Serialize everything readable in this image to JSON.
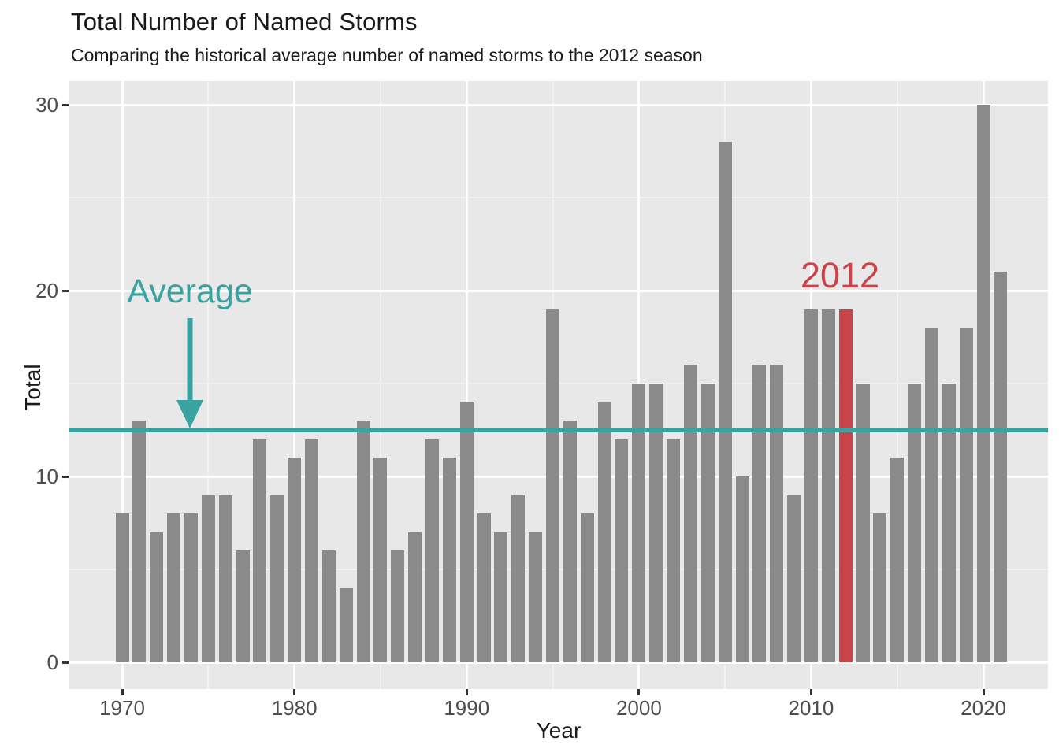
{
  "chart_data": {
    "type": "bar",
    "title": "Total Number of Named Storms",
    "subtitle": "Comparing the historical average number of named storms to the 2012 season",
    "xlabel": "Year",
    "ylabel": "Total",
    "x": [
      1970,
      1971,
      1972,
      1973,
      1974,
      1975,
      1976,
      1977,
      1978,
      1979,
      1980,
      1981,
      1982,
      1983,
      1984,
      1985,
      1986,
      1987,
      1988,
      1989,
      1990,
      1991,
      1992,
      1993,
      1994,
      1995,
      1996,
      1997,
      1998,
      1999,
      2000,
      2001,
      2002,
      2003,
      2004,
      2005,
      2006,
      2007,
      2008,
      2009,
      2010,
      2011,
      2012,
      2013,
      2014,
      2015,
      2016,
      2017,
      2018,
      2019,
      2020,
      2021
    ],
    "values": [
      8,
      13,
      7,
      8,
      8,
      9,
      9,
      6,
      12,
      9,
      11,
      12,
      6,
      4,
      13,
      11,
      6,
      7,
      12,
      11,
      14,
      8,
      7,
      9,
      7,
      19,
      13,
      8,
      14,
      12,
      15,
      15,
      12,
      16,
      15,
      28,
      10,
      16,
      16,
      9,
      19,
      19,
      19,
      15,
      8,
      11,
      15,
      18,
      15,
      18,
      30,
      21
    ],
    "highlight": {
      "year": 2012,
      "value": 19,
      "label": "2012"
    },
    "average_line": {
      "value": 12.5,
      "label": "Average"
    },
    "x_ticks": [
      1970,
      1980,
      1990,
      2000,
      2010,
      2020
    ],
    "x_minor": [
      1975,
      1985,
      1995,
      2005,
      2015
    ],
    "y_ticks": [
      0,
      10,
      20,
      30
    ],
    "y_minor": [
      5,
      15,
      25
    ],
    "ylim": [
      0,
      30
    ],
    "grid": true,
    "legend": false,
    "colors": {
      "bar": "#8A8A8A",
      "highlight": "#C9444A",
      "average": "#38A3A0",
      "panel": "#E8E8E8",
      "grid_major": "#FFFFFF",
      "grid_minor": "#F2F2F2",
      "tick_text": "#4D4D4D",
      "tick_mark": "#333333",
      "text": "#1A1A1A"
    }
  }
}
